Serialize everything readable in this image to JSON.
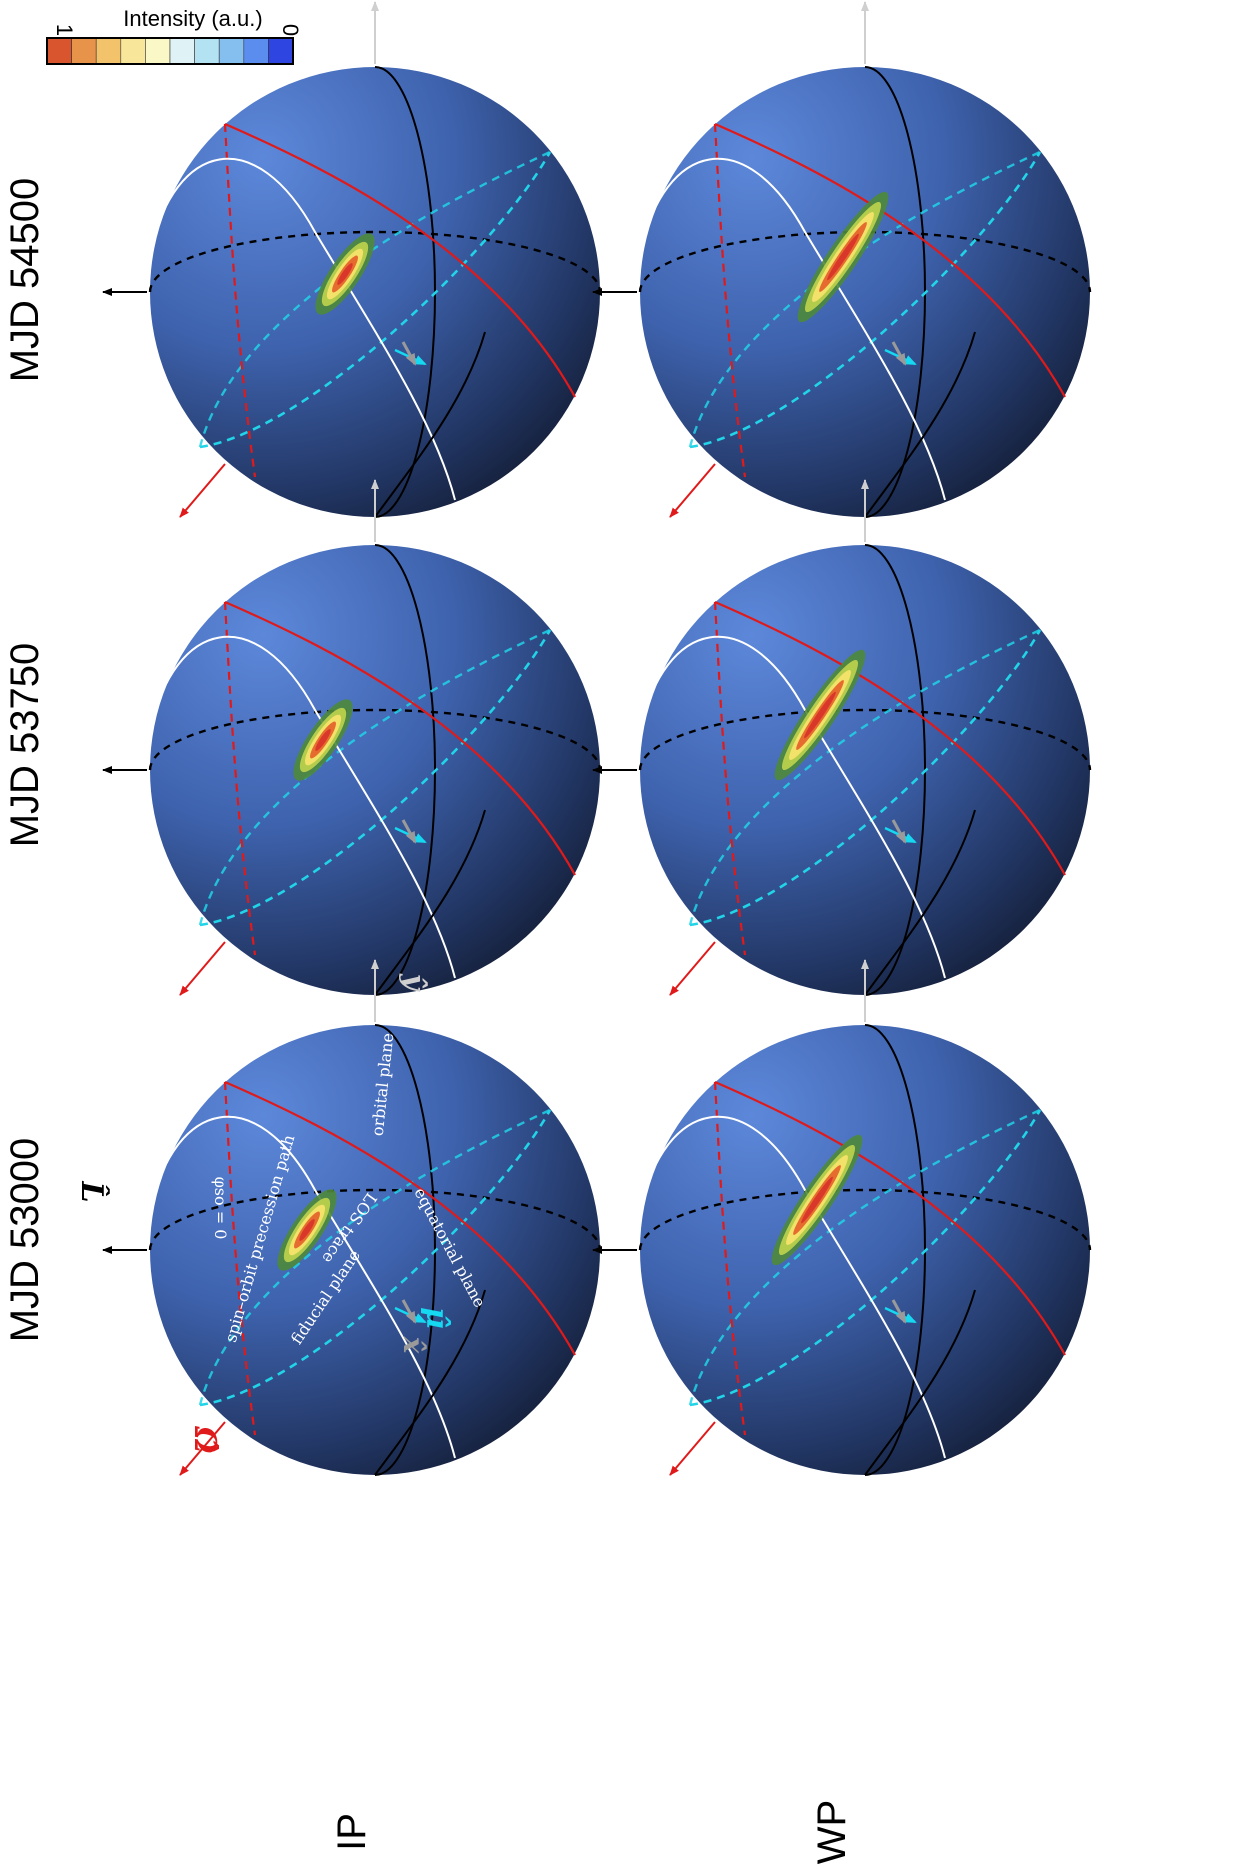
{
  "rows": [
    {
      "label": "IP",
      "spot": "compact"
    },
    {
      "label": "WP",
      "spot": "elongated"
    }
  ],
  "columns": [
    {
      "label": "MJD 53000"
    },
    {
      "label": "MJD 53750"
    },
    {
      "label": "MJD 54500"
    }
  ],
  "colorbar": {
    "title": "Intensity (a.u.)",
    "max_label": "1",
    "min_label": "0",
    "colors": [
      "#d9552e",
      "#e8934a",
      "#f2c36b",
      "#f8e69a",
      "#fbf8c8",
      "#dff3f6",
      "#b3e3f3",
      "#85bff0",
      "#5a8ded",
      "#2f45e2"
    ]
  },
  "annotations": {
    "spin_orbit": "spin–orbit precession path",
    "phi_so": "φso = 0",
    "fiducial": "fiducial plane",
    "los": "LOS trace",
    "orbital": "orbital plane",
    "equatorial": "equatorial plane"
  },
  "vectors": {
    "omega": "Ω̂",
    "L": "L̂",
    "mu": "μ̂",
    "x": "x̂",
    "y": "ŷ"
  },
  "colors": {
    "sphere_light": "#5b85d6",
    "sphere_dark": "#141c33",
    "red_circle": "#e01a1a",
    "cyan_circle": "#21d4e8",
    "white_circle": "#ffffff",
    "axis_black": "#000000",
    "axis_grey": "#cfcfcf",
    "mu_cyan": "#16d8f0"
  }
}
